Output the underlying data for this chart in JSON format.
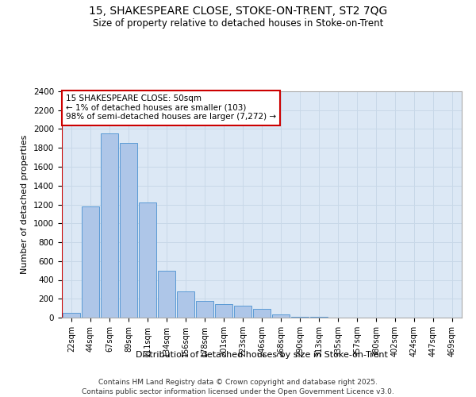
{
  "title_line1": "15, SHAKESPEARE CLOSE, STOKE-ON-TRENT, ST2 7QG",
  "title_line2": "Size of property relative to detached houses in Stoke-on-Trent",
  "xlabel": "Distribution of detached houses by size in Stoke-on-Trent",
  "ylabel": "Number of detached properties",
  "categories": [
    "22sqm",
    "44sqm",
    "67sqm",
    "89sqm",
    "111sqm",
    "134sqm",
    "156sqm",
    "178sqm",
    "201sqm",
    "223sqm",
    "246sqm",
    "268sqm",
    "290sqm",
    "313sqm",
    "335sqm",
    "357sqm",
    "380sqm",
    "402sqm",
    "424sqm",
    "447sqm",
    "469sqm"
  ],
  "values": [
    50,
    1175,
    1950,
    1850,
    1225,
    500,
    275,
    180,
    140,
    130,
    95,
    30,
    12,
    5,
    3,
    2,
    2,
    1,
    1,
    1,
    1
  ],
  "bar_color": "#aec6e8",
  "bar_edge_color": "#5b9bd5",
  "grid_color": "#c8d8e8",
  "background_color": "#dce8f5",
  "annotation_text": "15 SHAKESPEARE CLOSE: 50sqm\n← 1% of detached houses are smaller (103)\n98% of semi-detached houses are larger (7,272) →",
  "vline_color": "#cc0000",
  "annotation_box_edge_color": "#cc0000",
  "ylim": [
    0,
    2400
  ],
  "yticks": [
    0,
    200,
    400,
    600,
    800,
    1000,
    1200,
    1400,
    1600,
    1800,
    2000,
    2200,
    2400
  ],
  "footer_line1": "Contains HM Land Registry data © Crown copyright and database right 2025.",
  "footer_line2": "Contains public sector information licensed under the Open Government Licence v3.0."
}
